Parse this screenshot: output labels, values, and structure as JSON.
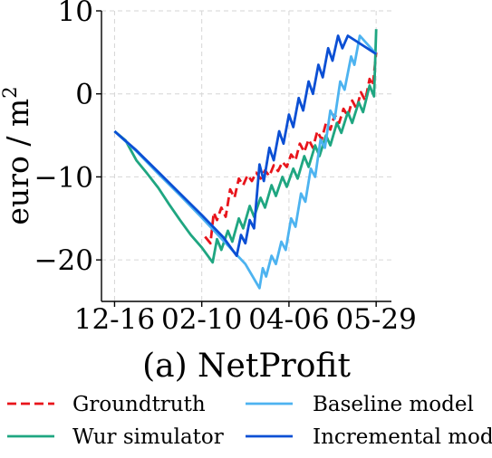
{
  "chart_data": {
    "type": "line",
    "caption": "(a) NetProfit",
    "ylabel_base": "euro / m",
    "ylabel_sup": "2",
    "ylim": [
      -25,
      10
    ],
    "yticks": [
      10,
      0,
      -10,
      -20
    ],
    "ytick_labels": [
      "10",
      "0",
      "−10",
      "−20"
    ],
    "xlim": [
      -1.2,
      25.4
    ],
    "xticks": [
      0,
      8,
      16,
      24
    ],
    "xtick_labels": [
      "12-16",
      "02-10",
      "04-06",
      "05-29"
    ],
    "grid": true,
    "legend_position": "bottom",
    "series": [
      {
        "name": "Groundtruth",
        "color": "#e8141b",
        "dash": true,
        "points": [
          [
            8.3,
            -17.2
          ],
          [
            8.8,
            -18.0
          ],
          [
            9.1,
            -14.3
          ],
          [
            9.4,
            -15.2
          ],
          [
            9.8,
            -13.7
          ],
          [
            10.2,
            -14.8
          ],
          [
            10.6,
            -11.5
          ],
          [
            11.0,
            -12.5
          ],
          [
            11.4,
            -10.2
          ],
          [
            11.8,
            -11.0
          ],
          [
            12.2,
            -9.8
          ],
          [
            12.6,
            -10.5
          ],
          [
            13.0,
            -9.5
          ],
          [
            13.4,
            -10.2
          ],
          [
            13.8,
            -9.2
          ],
          [
            14.2,
            -9.9
          ],
          [
            14.6,
            -8.6
          ],
          [
            15.0,
            -9.3
          ],
          [
            15.4,
            -8.2
          ],
          [
            15.8,
            -8.8
          ],
          [
            16.2,
            -7.3
          ],
          [
            16.6,
            -8.0
          ],
          [
            17.0,
            -6.0
          ],
          [
            17.4,
            -7.0
          ],
          [
            17.8,
            -5.5
          ],
          [
            18.2,
            -6.5
          ],
          [
            18.6,
            -4.5
          ],
          [
            19.0,
            -5.5
          ],
          [
            19.4,
            -3.5
          ],
          [
            19.8,
            -4.3
          ],
          [
            20.2,
            -2.5
          ],
          [
            20.6,
            -3.5
          ],
          [
            21.0,
            -1.8
          ],
          [
            21.4,
            -2.7
          ],
          [
            21.8,
            -0.8
          ],
          [
            22.2,
            -1.8
          ],
          [
            22.6,
            0.2
          ],
          [
            23.0,
            -0.8
          ],
          [
            23.4,
            1.8
          ],
          [
            23.7,
            1.0
          ],
          [
            24.0,
            5.0
          ]
        ]
      },
      {
        "name": "Wur simulator",
        "color": "#1fa681",
        "dash": false,
        "points": [
          [
            0,
            -4.5
          ],
          [
            1,
            -5.6
          ],
          [
            2,
            -8.0
          ],
          [
            3,
            -9.6
          ],
          [
            4,
            -11.3
          ],
          [
            5,
            -13.3
          ],
          [
            6,
            -15.2
          ],
          [
            7,
            -17.0
          ],
          [
            8,
            -18.5
          ],
          [
            9,
            -20.3
          ],
          [
            9.4,
            -17.5
          ],
          [
            9.8,
            -18.8
          ],
          [
            10.4,
            -16.5
          ],
          [
            10.8,
            -17.8
          ],
          [
            11.4,
            -15.0
          ],
          [
            11.8,
            -16.2
          ],
          [
            12.4,
            -13.5
          ],
          [
            12.8,
            -14.8
          ],
          [
            13.4,
            -12.5
          ],
          [
            13.8,
            -13.7
          ],
          [
            14.4,
            -11.0
          ],
          [
            14.8,
            -12.3
          ],
          [
            15.4,
            -10.0
          ],
          [
            15.8,
            -11.2
          ],
          [
            16.4,
            -9.0
          ],
          [
            16.8,
            -10.2
          ],
          [
            17.4,
            -7.5
          ],
          [
            17.8,
            -8.8
          ],
          [
            18.4,
            -6.2
          ],
          [
            18.8,
            -7.5
          ],
          [
            19.4,
            -5.0
          ],
          [
            19.8,
            -6.2
          ],
          [
            20.4,
            -3.5
          ],
          [
            20.8,
            -4.7
          ],
          [
            21.4,
            -2.2
          ],
          [
            21.8,
            -3.5
          ],
          [
            22.4,
            -1.0
          ],
          [
            22.8,
            -2.2
          ],
          [
            23.4,
            1.0
          ],
          [
            23.8,
            -0.3
          ],
          [
            24.0,
            7.8
          ]
        ]
      },
      {
        "name": "Baseline model",
        "color": "#4db3f0",
        "dash": false,
        "points": [
          [
            0,
            -4.5
          ],
          [
            2,
            -6.9
          ],
          [
            4,
            -9.6
          ],
          [
            6,
            -12.2
          ],
          [
            8,
            -14.9
          ],
          [
            10,
            -17.7
          ],
          [
            12,
            -20.5
          ],
          [
            13.3,
            -23.4
          ],
          [
            13.6,
            -21.0
          ],
          [
            13.9,
            -22.0
          ],
          [
            14.4,
            -19.5
          ],
          [
            14.8,
            -20.5
          ],
          [
            15.3,
            -17.8
          ],
          [
            15.7,
            -18.8
          ],
          [
            16.2,
            -15.0
          ],
          [
            16.6,
            -16.0
          ],
          [
            17.1,
            -12.0
          ],
          [
            17.5,
            -13.0
          ],
          [
            18.0,
            -9.0
          ],
          [
            18.4,
            -10.0
          ],
          [
            18.9,
            -5.5
          ],
          [
            19.3,
            -6.5
          ],
          [
            19.8,
            -2.0
          ],
          [
            20.2,
            -3.0
          ],
          [
            20.7,
            1.5
          ],
          [
            21.1,
            0.5
          ],
          [
            21.7,
            4.5
          ],
          [
            22.0,
            3.5
          ],
          [
            22.5,
            7.0
          ],
          [
            24.0,
            4.8
          ]
        ]
      },
      {
        "name": "Incremental model",
        "color": "#0b4fd4",
        "dash": false,
        "points": [
          [
            0,
            -4.5
          ],
          [
            2,
            -6.8
          ],
          [
            4,
            -9.4
          ],
          [
            6,
            -12.0
          ],
          [
            8,
            -14.6
          ],
          [
            10,
            -17.3
          ],
          [
            11.2,
            -19.5
          ],
          [
            11.6,
            -17.0
          ],
          [
            12.0,
            -18.0
          ],
          [
            12.4,
            -15.2
          ],
          [
            12.8,
            -16.2
          ],
          [
            13.3,
            -8.5
          ],
          [
            13.7,
            -10.5
          ],
          [
            14.2,
            -6.5
          ],
          [
            14.6,
            -8.0
          ],
          [
            15.1,
            -4.5
          ],
          [
            15.5,
            -6.0
          ],
          [
            16.0,
            -2.5
          ],
          [
            16.4,
            -4.0
          ],
          [
            16.9,
            -0.5
          ],
          [
            17.3,
            -2.0
          ],
          [
            17.8,
            1.5
          ],
          [
            18.2,
            0.0
          ],
          [
            18.7,
            3.5
          ],
          [
            19.1,
            2.0
          ],
          [
            19.6,
            5.5
          ],
          [
            20.0,
            4.0
          ],
          [
            20.5,
            7.0
          ],
          [
            20.9,
            5.5
          ],
          [
            21.4,
            7.0
          ],
          [
            24.0,
            4.8
          ]
        ]
      }
    ]
  }
}
